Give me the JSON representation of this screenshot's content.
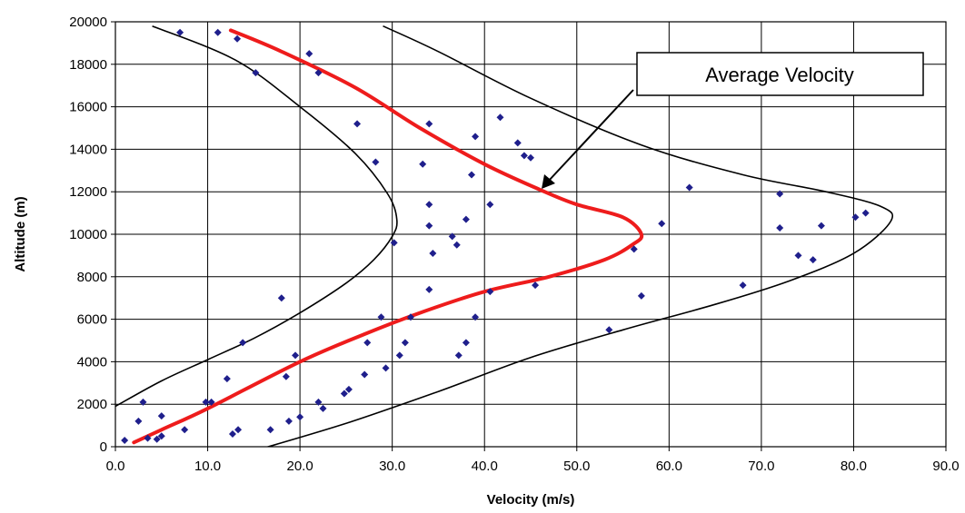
{
  "chart_data": {
    "type": "scatter",
    "title": "",
    "xlabel": "Velocity (m/s)",
    "ylabel": "Altitude (m)",
    "xlim": [
      0,
      90
    ],
    "ylim": [
      0,
      20000
    ],
    "x_ticks": [
      "0.0",
      "10.0",
      "20.0",
      "30.0",
      "40.0",
      "50.0",
      "60.0",
      "70.0",
      "80.0",
      "90.0"
    ],
    "y_ticks": [
      "0",
      "2000",
      "4000",
      "6000",
      "8000",
      "10000",
      "12000",
      "14000",
      "16000",
      "18000",
      "20000"
    ],
    "grid": true,
    "annotation": "Average Velocity",
    "colors": {
      "points": "#1f1f8c",
      "average": "#ee1c1c",
      "bounds": "#000000",
      "grid": "#000000"
    },
    "points": [
      {
        "x": 1.0,
        "y": 300
      },
      {
        "x": 2.5,
        "y": 1200
      },
      {
        "x": 3.0,
        "y": 2100
      },
      {
        "x": 3.5,
        "y": 400
      },
      {
        "x": 4.5,
        "y": 350
      },
      {
        "x": 5.0,
        "y": 500
      },
      {
        "x": 5.0,
        "y": 1450
      },
      {
        "x": 7.0,
        "y": 19500
      },
      {
        "x": 7.5,
        "y": 800
      },
      {
        "x": 9.8,
        "y": 2100
      },
      {
        "x": 10.4,
        "y": 2100
      },
      {
        "x": 11.1,
        "y": 19500
      },
      {
        "x": 12.1,
        "y": 3200
      },
      {
        "x": 12.7,
        "y": 600
      },
      {
        "x": 13.2,
        "y": 19200
      },
      {
        "x": 13.3,
        "y": 800
      },
      {
        "x": 13.8,
        "y": 4900
      },
      {
        "x": 15.2,
        "y": 17600
      },
      {
        "x": 16.8,
        "y": 800
      },
      {
        "x": 18.0,
        "y": 7000
      },
      {
        "x": 18.5,
        "y": 3300
      },
      {
        "x": 18.8,
        "y": 1200
      },
      {
        "x": 19.5,
        "y": 4300
      },
      {
        "x": 20.0,
        "y": 1400
      },
      {
        "x": 21.0,
        "y": 18500
      },
      {
        "x": 22.0,
        "y": 17600
      },
      {
        "x": 22.0,
        "y": 2100
      },
      {
        "x": 22.5,
        "y": 1800
      },
      {
        "x": 24.8,
        "y": 2500
      },
      {
        "x": 25.3,
        "y": 2700
      },
      {
        "x": 26.2,
        "y": 15200
      },
      {
        "x": 27.0,
        "y": 3400
      },
      {
        "x": 27.3,
        "y": 4900
      },
      {
        "x": 28.2,
        "y": 13400
      },
      {
        "x": 28.8,
        "y": 6100
      },
      {
        "x": 29.3,
        "y": 3700
      },
      {
        "x": 30.2,
        "y": 9600
      },
      {
        "x": 30.8,
        "y": 4300
      },
      {
        "x": 31.4,
        "y": 4900
      },
      {
        "x": 32.0,
        "y": 6100
      },
      {
        "x": 33.3,
        "y": 13300
      },
      {
        "x": 34.0,
        "y": 15200
      },
      {
        "x": 34.0,
        "y": 11400
      },
      {
        "x": 34.0,
        "y": 10400
      },
      {
        "x": 34.0,
        "y": 7400
      },
      {
        "x": 34.4,
        "y": 9100
      },
      {
        "x": 36.5,
        "y": 9900
      },
      {
        "x": 37.0,
        "y": 9500
      },
      {
        "x": 37.2,
        "y": 4300
      },
      {
        "x": 38.0,
        "y": 10700
      },
      {
        "x": 38.0,
        "y": 4900
      },
      {
        "x": 38.6,
        "y": 12800
      },
      {
        "x": 39.0,
        "y": 14600
      },
      {
        "x": 39.0,
        "y": 6100
      },
      {
        "x": 40.6,
        "y": 11400
      },
      {
        "x": 40.6,
        "y": 7300
      },
      {
        "x": 41.7,
        "y": 15500
      },
      {
        "x": 43.6,
        "y": 14300
      },
      {
        "x": 44.3,
        "y": 13700
      },
      {
        "x": 45.0,
        "y": 13600
      },
      {
        "x": 45.5,
        "y": 7600
      },
      {
        "x": 53.5,
        "y": 5500
      },
      {
        "x": 56.2,
        "y": 9300
      },
      {
        "x": 57.0,
        "y": 7100
      },
      {
        "x": 59.2,
        "y": 10500
      },
      {
        "x": 62.2,
        "y": 12200
      },
      {
        "x": 68.0,
        "y": 7600
      },
      {
        "x": 72.0,
        "y": 11900
      },
      {
        "x": 72.0,
        "y": 10300
      },
      {
        "x": 74.0,
        "y": 9000
      },
      {
        "x": 75.6,
        "y": 8800
      },
      {
        "x": 76.5,
        "y": 10400
      },
      {
        "x": 80.2,
        "y": 10800
      },
      {
        "x": 81.3,
        "y": 11000
      }
    ],
    "average_line": [
      {
        "x": 2.0,
        "y": 200
      },
      {
        "x": 5.0,
        "y": 800
      },
      {
        "x": 10.0,
        "y": 1800
      },
      {
        "x": 20.0,
        "y": 4000
      },
      {
        "x": 27.0,
        "y": 5300
      },
      {
        "x": 33.0,
        "y": 6300
      },
      {
        "x": 40.0,
        "y": 7300
      },
      {
        "x": 47.0,
        "y": 8000
      },
      {
        "x": 53.0,
        "y": 8800
      },
      {
        "x": 56.0,
        "y": 9500
      },
      {
        "x": 57.0,
        "y": 10000
      },
      {
        "x": 55.0,
        "y": 10800
      },
      {
        "x": 50.0,
        "y": 11400
      },
      {
        "x": 46.0,
        "y": 12100
      },
      {
        "x": 40.0,
        "y": 13300
      },
      {
        "x": 33.0,
        "y": 15000
      },
      {
        "x": 26.0,
        "y": 16900
      },
      {
        "x": 18.0,
        "y": 18600
      },
      {
        "x": 12.5,
        "y": 19600
      }
    ],
    "lower_bound_line": [
      {
        "x": 0.0,
        "y": 1900
      },
      {
        "x": 5.0,
        "y": 3100
      },
      {
        "x": 10.0,
        "y": 4100
      },
      {
        "x": 15.0,
        "y": 5100
      },
      {
        "x": 20.0,
        "y": 6300
      },
      {
        "x": 25.0,
        "y": 7700
      },
      {
        "x": 28.0,
        "y": 8800
      },
      {
        "x": 30.0,
        "y": 9900
      },
      {
        "x": 30.5,
        "y": 10700
      },
      {
        "x": 29.5,
        "y": 11900
      },
      {
        "x": 26.0,
        "y": 13800
      },
      {
        "x": 20.0,
        "y": 16000
      },
      {
        "x": 13.0,
        "y": 18200
      },
      {
        "x": 4.0,
        "y": 19800
      }
    ],
    "upper_bound_line": [
      {
        "x": 15.0,
        "y": -200
      },
      {
        "x": 25.0,
        "y": 1100
      },
      {
        "x": 35.0,
        "y": 2600
      },
      {
        "x": 45.0,
        "y": 4200
      },
      {
        "x": 55.0,
        "y": 5500
      },
      {
        "x": 65.0,
        "y": 6700
      },
      {
        "x": 73.0,
        "y": 7800
      },
      {
        "x": 80.0,
        "y": 9100
      },
      {
        "x": 84.0,
        "y": 10600
      },
      {
        "x": 83.0,
        "y": 11300
      },
      {
        "x": 77.0,
        "y": 12000
      },
      {
        "x": 68.0,
        "y": 12800
      },
      {
        "x": 57.0,
        "y": 14200
      },
      {
        "x": 45.0,
        "y": 16400
      },
      {
        "x": 35.0,
        "y": 18600
      },
      {
        "x": 29.0,
        "y": 19800
      }
    ]
  }
}
